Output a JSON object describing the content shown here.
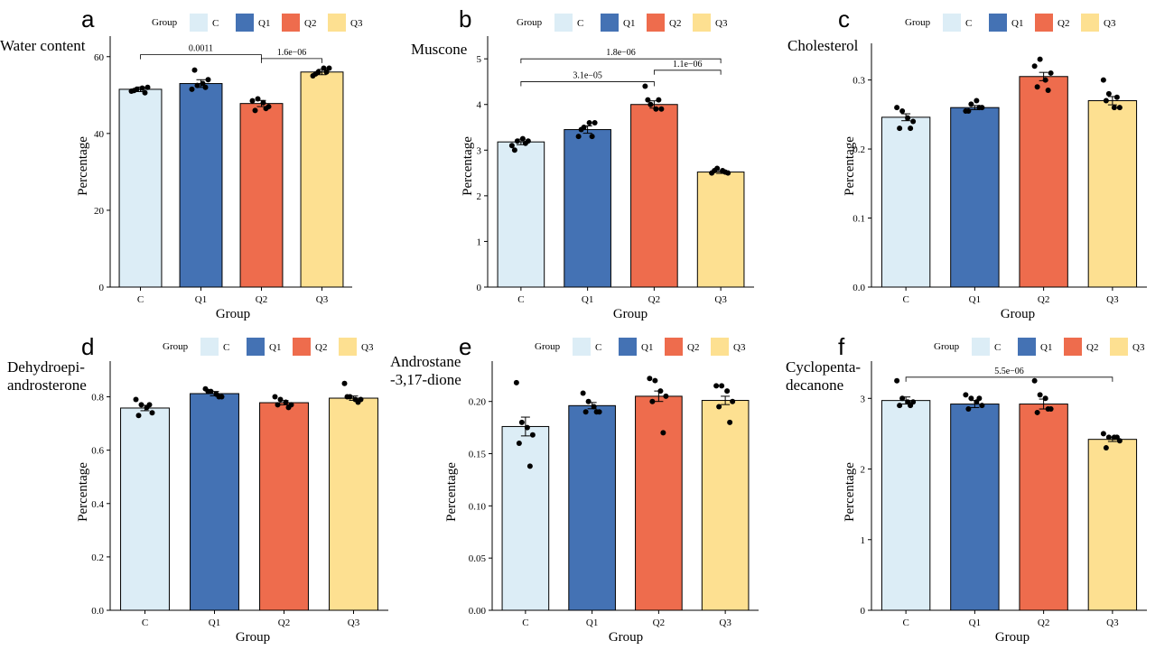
{
  "colors": {
    "C": "#dcedf6",
    "Q1": "#4472b4",
    "Q2": "#ee6c4d",
    "Q3": "#fde091",
    "bar_outline": "#000000",
    "point": "#000000"
  },
  "chart_data": [
    {
      "type": "bar",
      "panel_letter": "a",
      "title": "Water content",
      "legend_title": "Group",
      "categories": [
        "C",
        "Q1",
        "Q2",
        "Q3"
      ],
      "values": [
        51.5,
        53.0,
        47.8,
        56.0
      ],
      "errors": [
        0.6,
        1.0,
        0.8,
        0.7
      ],
      "points": [
        [
          51.0,
          51.5,
          51.8,
          52.0,
          51.2,
          50.6
        ],
        [
          51.5,
          52.5,
          53.0,
          54.0,
          56.5,
          52.0
        ],
        [
          48.5,
          49.0,
          48.0,
          47.0,
          46.0,
          46.5
        ],
        [
          55.0,
          56.0,
          57.0,
          57.0,
          55.5,
          56.0
        ]
      ],
      "xlabel": "Group",
      "ylabel": "Percentage",
      "ylim": [
        0,
        63
      ],
      "yticks": [
        0,
        20,
        40,
        60
      ],
      "tick_labels": [
        "0",
        "20",
        "40",
        "60"
      ],
      "comparisons": [
        {
          "from": "C",
          "to": "Q2",
          "label": "0.0011",
          "y": 60.5
        },
        {
          "from": "Q2",
          "to": "Q3",
          "label": "1.6e−06",
          "y": 59.5
        }
      ]
    },
    {
      "type": "bar",
      "panel_letter": "b",
      "title": "Muscone",
      "legend_title": "Group",
      "categories": [
        "C",
        "Q1",
        "Q2",
        "Q3"
      ],
      "values": [
        3.18,
        3.45,
        4.0,
        2.52
      ],
      "errors": [
        0.06,
        0.08,
        0.08,
        0.03
      ],
      "points": [
        [
          3.1,
          3.2,
          3.25,
          3.2,
          3.0,
          3.15
        ],
        [
          3.3,
          3.5,
          3.6,
          3.6,
          3.45,
          3.3
        ],
        [
          4.4,
          4.0,
          3.9,
          3.9,
          4.1,
          4.1
        ],
        [
          2.5,
          2.6,
          2.55,
          2.5,
          2.55,
          2.52
        ]
      ],
      "xlabel": "Group",
      "ylabel": "Percentage",
      "ylim": [
        0,
        5.3
      ],
      "yticks": [
        0,
        1,
        2,
        3,
        4,
        5
      ],
      "tick_labels": [
        "0",
        "1",
        "2",
        "3",
        "4",
        "5"
      ],
      "comparisons": [
        {
          "from": "C",
          "to": "Q3",
          "label": "1.8e−06",
          "y": 5.0
        },
        {
          "from": "C",
          "to": "Q2",
          "label": "3.1e−05",
          "y": 4.5
        },
        {
          "from": "Q2",
          "to": "Q3",
          "label": "1.1e−06",
          "y": 4.75
        }
      ]
    },
    {
      "type": "bar",
      "panel_letter": "c",
      "title": "Cholesterol",
      "legend_title": "Group",
      "categories": [
        "C",
        "Q1",
        "Q2",
        "Q3"
      ],
      "values": [
        0.246,
        0.26,
        0.305,
        0.27
      ],
      "errors": [
        0.005,
        0.003,
        0.006,
        0.006
      ],
      "points": [
        [
          0.26,
          0.255,
          0.245,
          0.24,
          0.23,
          0.23
        ],
        [
          0.255,
          0.265,
          0.27,
          0.26,
          0.255,
          0.26
        ],
        [
          0.32,
          0.33,
          0.3,
          0.31,
          0.29,
          0.285
        ],
        [
          0.3,
          0.28,
          0.26,
          0.26,
          0.27,
          0.275
        ]
      ],
      "xlabel": "Group",
      "ylabel": "Percentage",
      "ylim": [
        0,
        0.34
      ],
      "yticks": [
        0,
        0.1,
        0.2,
        0.3
      ],
      "tick_labels": [
        "0.0",
        "0.1",
        "0.2",
        "0.3"
      ],
      "comparisons": []
    },
    {
      "type": "bar",
      "panel_letter": "d",
      "title": "Dehydroepi-\nandrosterone",
      "legend_title": "Group",
      "categories": [
        "C",
        "Q1",
        "Q2",
        "Q3"
      ],
      "values": [
        0.758,
        0.812,
        0.778,
        0.795
      ],
      "errors": [
        0.01,
        0.008,
        0.008,
        0.008
      ],
      "points": [
        [
          0.79,
          0.77,
          0.76,
          0.74,
          0.73,
          0.77
        ],
        [
          0.83,
          0.82,
          0.81,
          0.8,
          0.82,
          0.8
        ],
        [
          0.8,
          0.79,
          0.78,
          0.77,
          0.77,
          0.76
        ],
        [
          0.85,
          0.8,
          0.79,
          0.79,
          0.8,
          0.78
        ]
      ],
      "xlabel": "Group",
      "ylabel": "Percentage",
      "ylim": [
        0,
        0.9
      ],
      "yticks": [
        0,
        0.2,
        0.4,
        0.6,
        0.8
      ],
      "tick_labels": [
        "0.0",
        "0.2",
        "0.4",
        "0.6",
        "0.8"
      ],
      "comparisons": []
    },
    {
      "type": "bar",
      "panel_letter": "e",
      "title": "Androstane\n-3,17-dione",
      "legend_title": "Group",
      "categories": [
        "C",
        "Q1",
        "Q2",
        "Q3"
      ],
      "values": [
        0.176,
        0.196,
        0.205,
        0.201
      ],
      "errors": [
        0.009,
        0.003,
        0.005,
        0.004
      ],
      "points": [
        [
          0.218,
          0.18,
          0.175,
          0.168,
          0.16,
          0.138
        ],
        [
          0.208,
          0.2,
          0.195,
          0.19,
          0.19,
          0.19
        ],
        [
          0.222,
          0.22,
          0.21,
          0.205,
          0.2,
          0.17
        ],
        [
          0.215,
          0.215,
          0.21,
          0.2,
          0.195,
          0.18
        ]
      ],
      "xlabel": "Group",
      "ylabel": "Percentage",
      "ylim": [
        0,
        0.23
      ],
      "yticks": [
        0,
        0.05,
        0.1,
        0.15,
        0.2
      ],
      "tick_labels": [
        "0.00",
        "0.05",
        "0.10",
        "0.15",
        "0.20"
      ],
      "comparisons": []
    },
    {
      "type": "bar",
      "panel_letter": "f",
      "title": "Cyclopenta-\ndecanone",
      "legend_title": "Group",
      "categories": [
        "C",
        "Q1",
        "Q2",
        "Q3"
      ],
      "values": [
        2.97,
        2.92,
        2.92,
        2.42
      ],
      "errors": [
        0.05,
        0.05,
        0.07,
        0.03
      ],
      "points": [
        [
          3.25,
          3.0,
          2.95,
          2.95,
          2.9,
          2.9
        ],
        [
          3.05,
          3.0,
          2.95,
          2.9,
          2.85,
          3.0
        ],
        [
          3.25,
          3.05,
          3.0,
          2.85,
          2.8,
          2.85
        ],
        [
          2.5,
          2.45,
          2.45,
          2.4,
          2.3,
          2.45
        ]
      ],
      "xlabel": "Group",
      "ylabel": "Percentage",
      "ylim": [
        0,
        3.4
      ],
      "yticks": [
        0,
        1,
        2,
        3
      ],
      "tick_labels": [
        "0",
        "1",
        "2",
        "3"
      ],
      "comparisons": [
        {
          "from": "C",
          "to": "Q3",
          "label": "5.5e−06",
          "y": 3.3
        }
      ]
    }
  ]
}
